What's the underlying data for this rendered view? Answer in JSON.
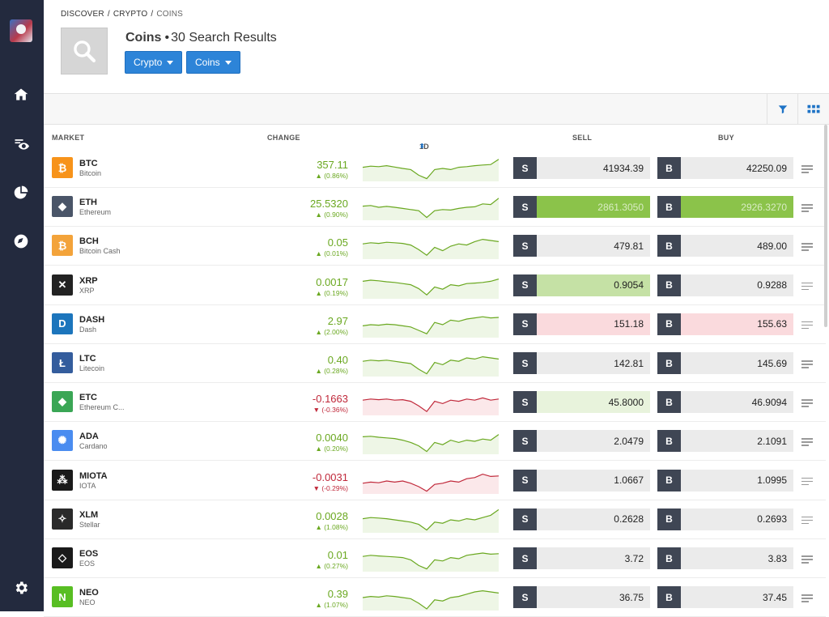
{
  "breadcrumb": {
    "discover": "DISCOVER",
    "crypto": "CRYPTO",
    "coins": "COINS",
    "sep": "/"
  },
  "page": {
    "title": "Coins",
    "dot": "•",
    "count": "30",
    "results_label": "Search Results"
  },
  "filters": {
    "crypto": "Crypto",
    "coins": "Coins"
  },
  "columns": {
    "market": "MARKET",
    "change": "CHANGE",
    "period": "1D",
    "sell": "SELL",
    "buy": "BUY"
  },
  "trade_tags": {
    "sell": "S",
    "buy": "B"
  },
  "colors": {
    "positive": "#6aa820",
    "negative": "#c0283a",
    "accent": "#2d84d8",
    "sidebar": "#232a3e",
    "highlight_green": "#8bc34a",
    "highlight_light_green": "#c5e1a5",
    "highlight_pale_green": "#e8f3dc",
    "highlight_red": "#fadadd"
  },
  "markets": [
    {
      "symbol": "BTC",
      "name": "Bitcoin",
      "change": "357.11",
      "change_pct": "▲ (0.86%)",
      "direction": "up",
      "sell": "41934.39",
      "buy": "42250.09",
      "icon": "bitcoin-icon",
      "icon_color": "#f7931a",
      "icon_glyph": "₿",
      "sell_state": "normal",
      "buy_state": "normal"
    },
    {
      "symbol": "ETH",
      "name": "Ethereum",
      "change": "25.5320",
      "change_pct": "▲ (0.90%)",
      "direction": "up",
      "sell": "2861.3050",
      "buy": "2926.3270",
      "icon": "ethereum-icon",
      "icon_color": "#4a5568",
      "icon_glyph": "◆",
      "sell_state": "green",
      "buy_state": "green"
    },
    {
      "symbol": "BCH",
      "name": "Bitcoin Cash",
      "change": "0.05",
      "change_pct": "▲ (0.01%)",
      "direction": "up",
      "sell": "479.81",
      "buy": "489.00",
      "icon": "bitcoin-cash-icon",
      "icon_color": "#f3a33a",
      "icon_glyph": "₿",
      "sell_state": "normal",
      "buy_state": "normal"
    },
    {
      "symbol": "XRP",
      "name": "XRP",
      "change": "0.0017",
      "change_pct": "▲ (0.19%)",
      "direction": "up",
      "sell": "0.9054",
      "buy": "0.9288",
      "icon": "xrp-icon",
      "icon_color": "#222222",
      "icon_glyph": "✕",
      "sell_state": "light-green",
      "buy_state": "normal"
    },
    {
      "symbol": "DASH",
      "name": "Dash",
      "change": "2.97",
      "change_pct": "▲ (2.00%)",
      "direction": "up",
      "sell": "151.18",
      "buy": "155.63",
      "icon": "dash-icon",
      "icon_color": "#1c75bc",
      "icon_glyph": "D",
      "sell_state": "red",
      "buy_state": "red"
    },
    {
      "symbol": "LTC",
      "name": "Litecoin",
      "change": "0.40",
      "change_pct": "▲ (0.28%)",
      "direction": "up",
      "sell": "142.81",
      "buy": "145.69",
      "icon": "litecoin-icon",
      "icon_color": "#345d9d",
      "icon_glyph": "Ł",
      "sell_state": "normal",
      "buy_state": "normal"
    },
    {
      "symbol": "ETC",
      "name": "Ethereum C...",
      "change": "-0.1663",
      "change_pct": "▼ (-0.36%)",
      "direction": "down",
      "sell": "45.8000",
      "buy": "46.9094",
      "icon": "ethereum-classic-icon",
      "icon_color": "#3aa655",
      "icon_glyph": "◆",
      "sell_state": "pale-green",
      "buy_state": "normal"
    },
    {
      "symbol": "ADA",
      "name": "Cardano",
      "change": "0.0040",
      "change_pct": "▲ (0.20%)",
      "direction": "up",
      "sell": "2.0479",
      "buy": "2.1091",
      "icon": "cardano-icon",
      "icon_color": "#4a8cf0",
      "icon_glyph": "✺",
      "sell_state": "normal",
      "buy_state": "normal"
    },
    {
      "symbol": "MIOTA",
      "name": "IOTA",
      "change": "-0.0031",
      "change_pct": "▼ (-0.29%)",
      "direction": "down",
      "sell": "1.0667",
      "buy": "1.0995",
      "icon": "iota-icon",
      "icon_color": "#1a1a1a",
      "icon_glyph": "⁂",
      "sell_state": "normal",
      "buy_state": "normal"
    },
    {
      "symbol": "XLM",
      "name": "Stellar",
      "change": "0.0028",
      "change_pct": "▲ (1.08%)",
      "direction": "up",
      "sell": "0.2628",
      "buy": "0.2693",
      "icon": "stellar-icon",
      "icon_color": "#2a2a2a",
      "icon_glyph": "✧",
      "sell_state": "normal",
      "buy_state": "normal"
    },
    {
      "symbol": "EOS",
      "name": "EOS",
      "change": "0.01",
      "change_pct": "▲ (0.27%)",
      "direction": "up",
      "sell": "3.72",
      "buy": "3.83",
      "icon": "eos-icon",
      "icon_color": "#1a1a1a",
      "icon_glyph": "◇",
      "sell_state": "normal",
      "buy_state": "normal"
    },
    {
      "symbol": "NEO",
      "name": "NEO",
      "change": "0.39",
      "change_pct": "▲ (1.07%)",
      "direction": "up",
      "sell": "36.75",
      "buy": "37.45",
      "icon": "neo-icon",
      "icon_color": "#58be23",
      "icon_glyph": "N",
      "sell_state": "normal",
      "buy_state": "normal"
    }
  ]
}
